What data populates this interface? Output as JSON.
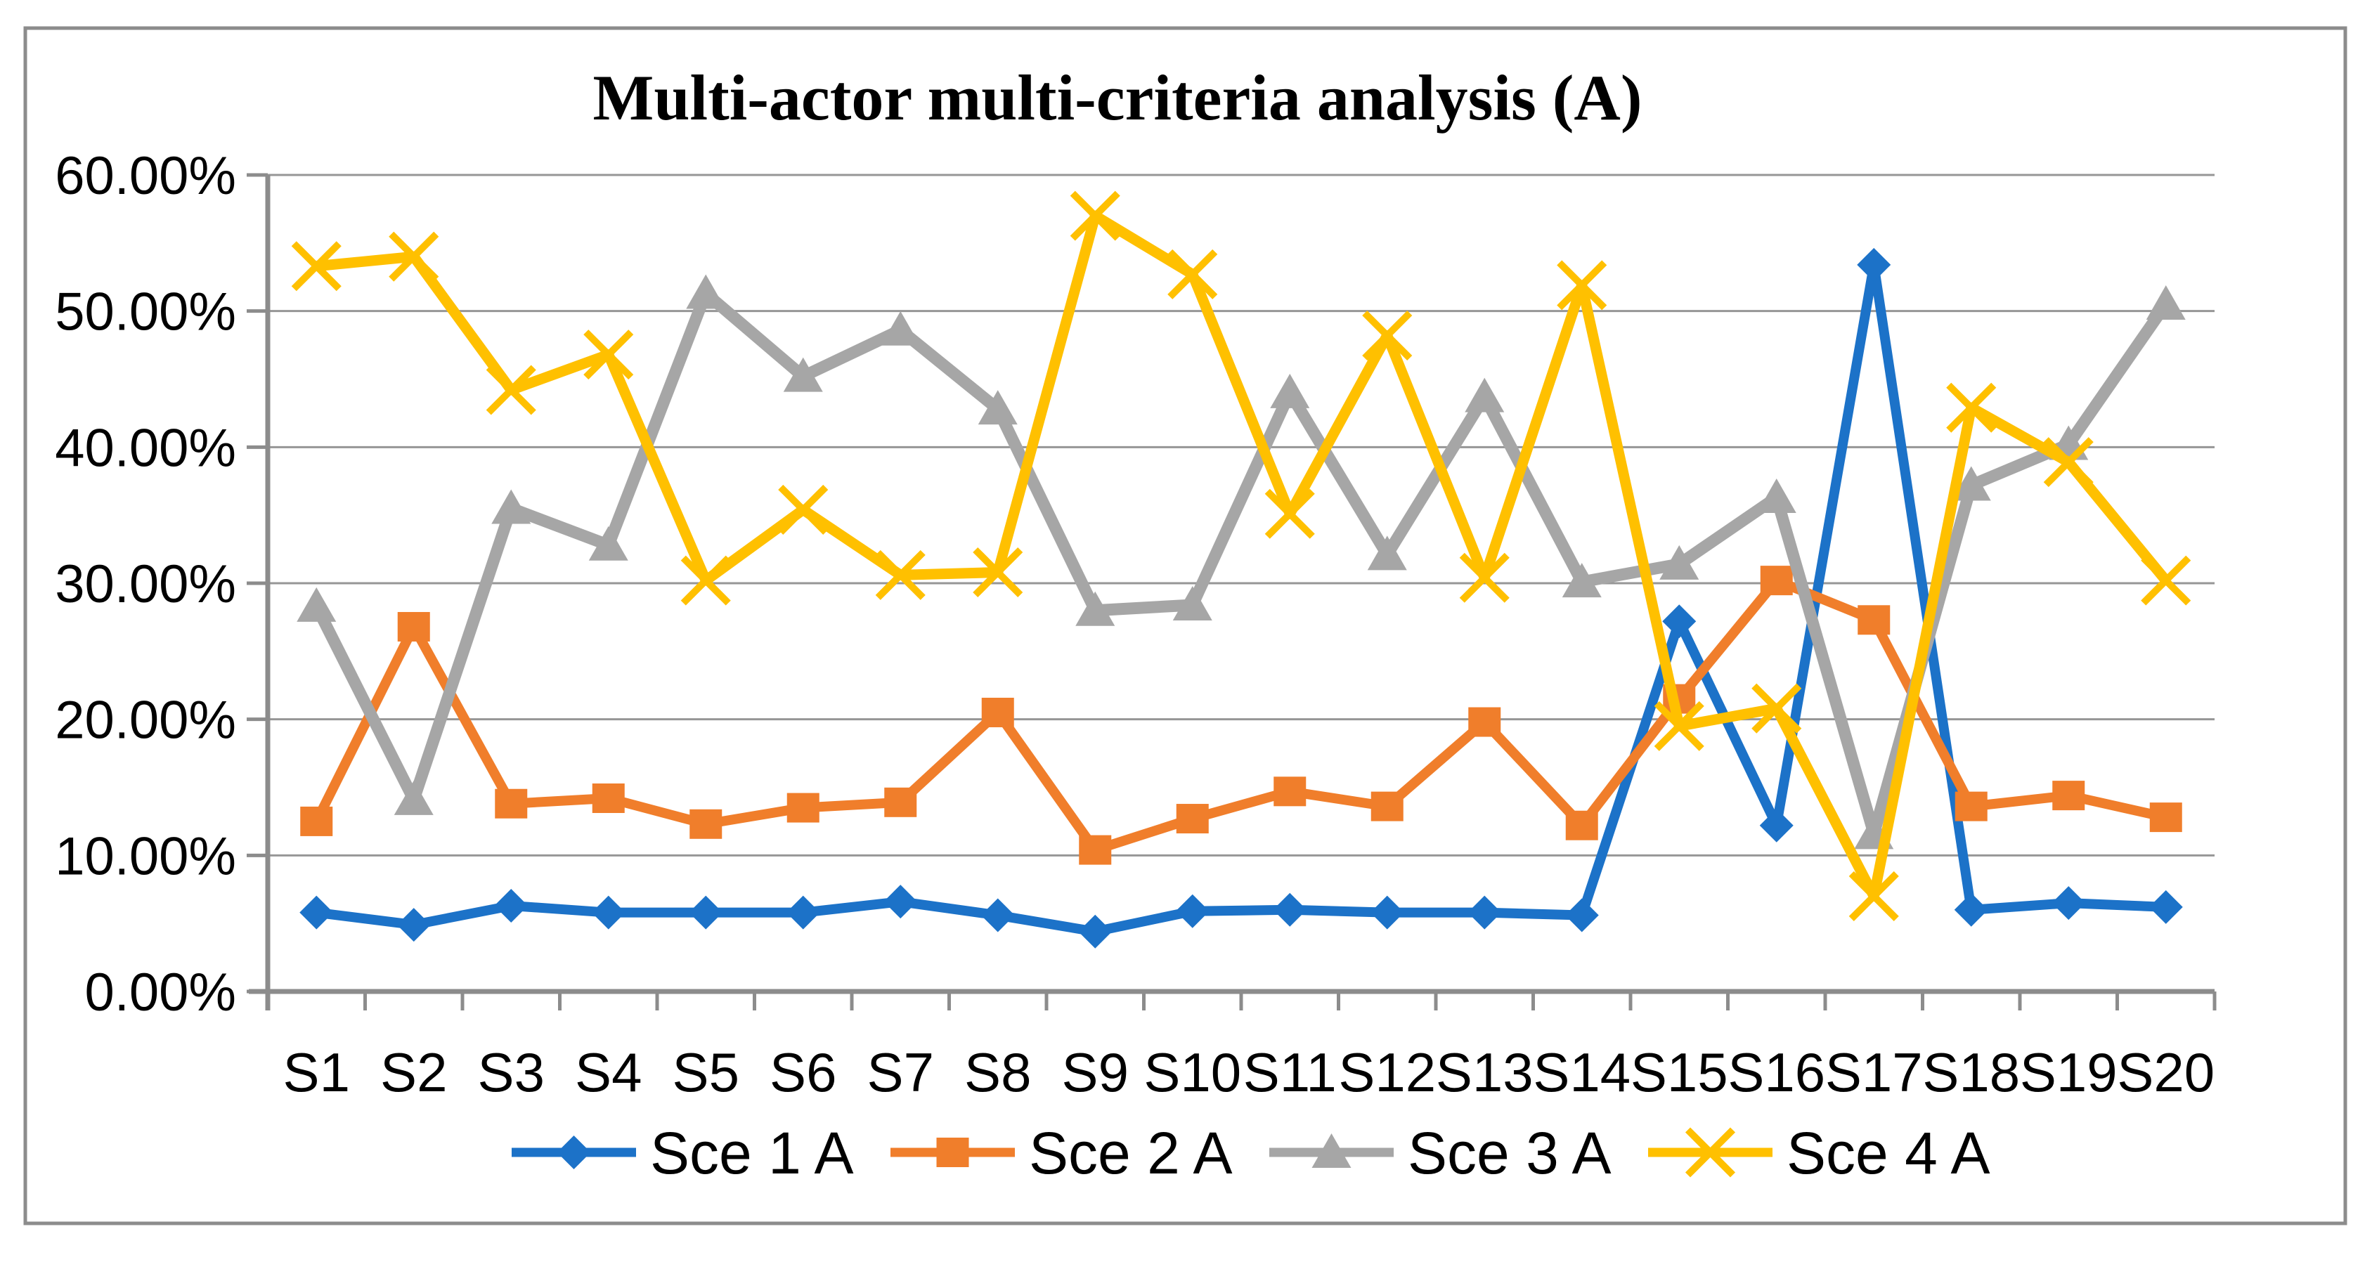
{
  "figure": {
    "background": "#ffffff",
    "border_color": "#8C8C8C"
  },
  "chart_data": {
    "type": "line",
    "title": "Multi-actor multi-criteria analysis (A)",
    "categories": [
      "S1",
      "S2",
      "S3",
      "S4",
      "S5",
      "S6",
      "S7",
      "S8",
      "S9",
      "S10",
      "S11",
      "S12",
      "S13",
      "S14",
      "S15",
      "S16",
      "S17",
      "S18",
      "S19",
      "S20"
    ],
    "series": [
      {
        "name": "Sce 1 A",
        "color": "#1C72C8",
        "marker": "diamond",
        "values": [
          5.8,
          4.9,
          6.3,
          5.8,
          5.8,
          5.8,
          6.6,
          5.6,
          4.4,
          5.9,
          6.0,
          5.8,
          5.8,
          5.6,
          27.2,
          12.2,
          53.4,
          6.0,
          6.5,
          6.2
        ]
      },
      {
        "name": "Sce 2 A",
        "color": "#F07E2B",
        "marker": "square",
        "values": [
          12.5,
          26.8,
          13.8,
          14.2,
          12.3,
          13.5,
          13.9,
          20.5,
          10.4,
          12.7,
          14.7,
          13.6,
          19.8,
          12.2,
          21.5,
          30.2,
          27.3,
          13.6,
          14.4,
          12.8
        ]
      },
      {
        "name": "Sce 3 A",
        "color": "#A6A6A6",
        "marker": "triangle",
        "values": [
          28.3,
          14.1,
          35.5,
          32.8,
          51.3,
          45.2,
          48.6,
          42.8,
          28.0,
          28.4,
          44.0,
          32.1,
          43.7,
          30.1,
          31.4,
          36.3,
          11.6,
          37.2,
          40.2,
          50.5
        ]
      },
      {
        "name": "Sce 4 A",
        "color": "#FFC000",
        "marker": "x",
        "values": [
          53.3,
          54.0,
          44.2,
          46.8,
          30.2,
          35.4,
          30.6,
          30.8,
          57.0,
          52.7,
          35.1,
          48.2,
          30.4,
          51.9,
          19.5,
          20.8,
          7.0,
          42.9,
          38.9,
          30.2
        ]
      }
    ],
    "y_axis": {
      "min": 0,
      "max": 60,
      "step": 10,
      "tick_labels": [
        "0.00%",
        "10.00%",
        "20.00%",
        "30.00%",
        "40.00%",
        "50.00%",
        "60.00%"
      ]
    },
    "x_axis": {
      "tick_labels": [
        "S1",
        "S2",
        "S3",
        "S4",
        "S5",
        "S6",
        "S7",
        "S8",
        "S9",
        "S10",
        "S11",
        "S12",
        "S13",
        "S14",
        "S15",
        "S16",
        "S17",
        "S18",
        "S19",
        "S20"
      ]
    },
    "grid": true,
    "legend_position": "bottom",
    "gridline_color": "#969696",
    "axis_color": "#8C8C8C",
    "text_color": "#000000"
  }
}
